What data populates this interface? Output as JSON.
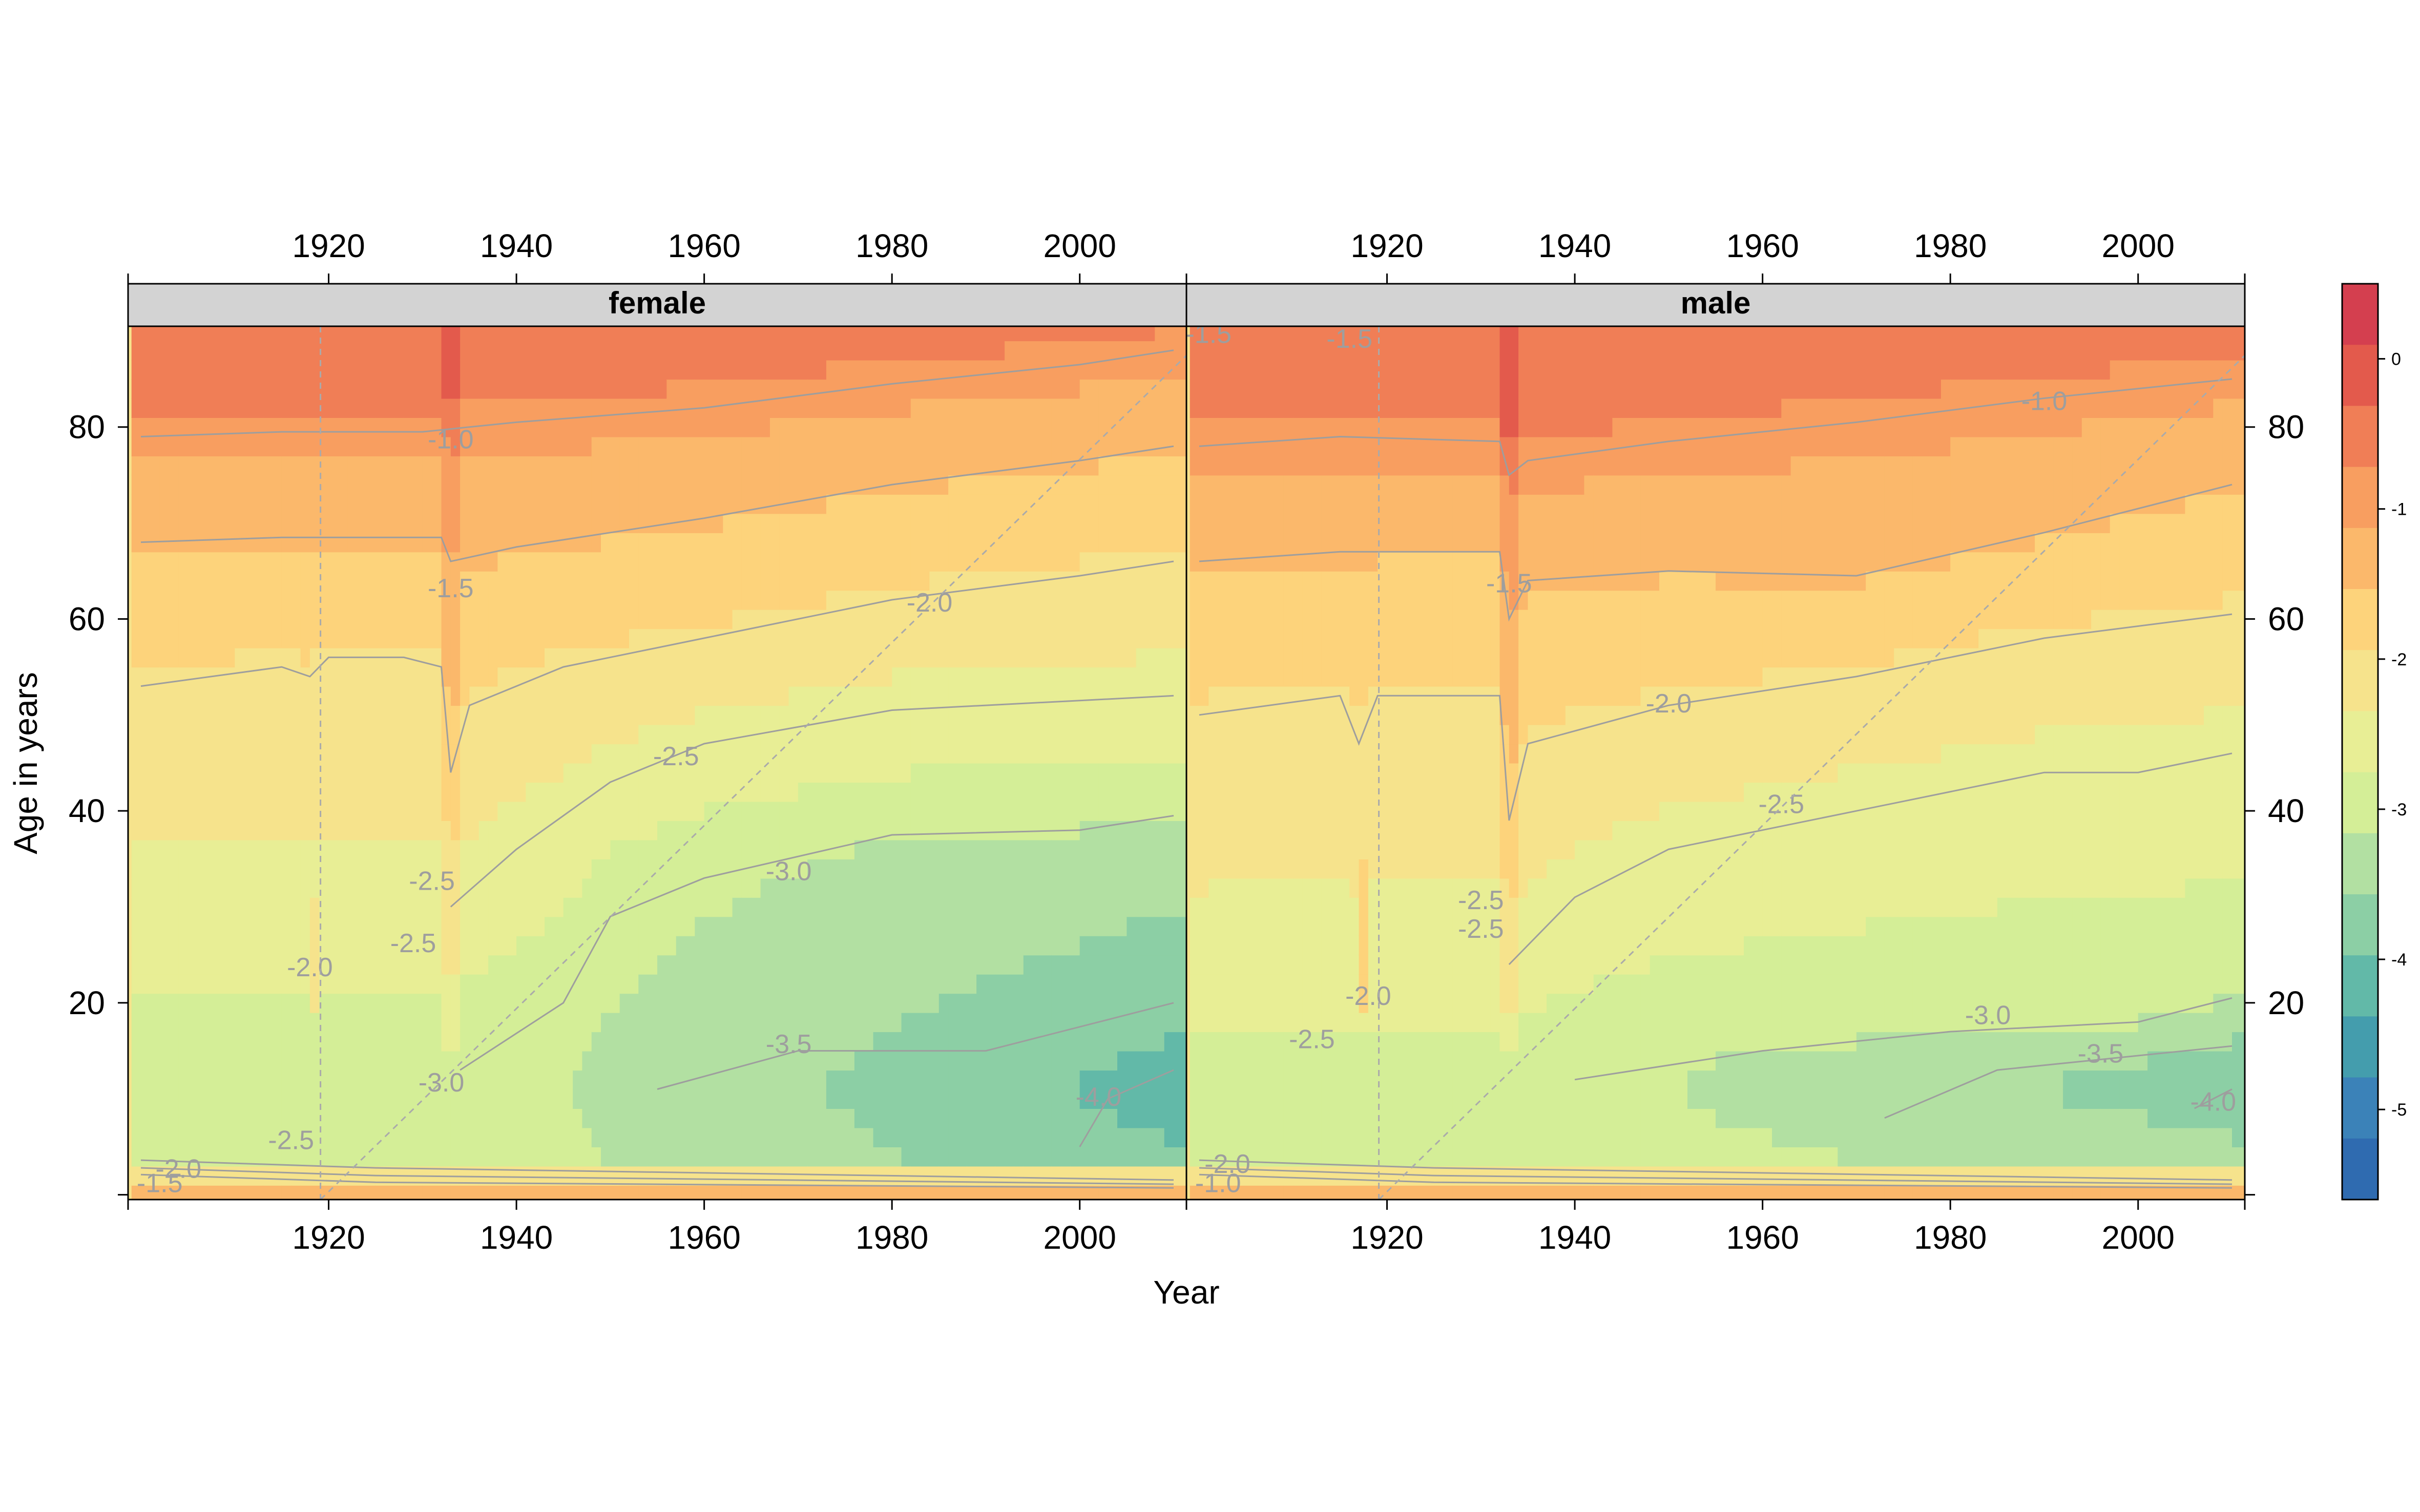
{
  "chart_data": {
    "type": "heatmap",
    "xlabel": "Year",
    "ylabel": "Age in years",
    "xlim": [
      1900,
      2010
    ],
    "ylim": [
      0,
      90
    ],
    "x_ticks": [
      1920,
      1940,
      1960,
      1980,
      2000
    ],
    "y_ticks": [
      20,
      40,
      60,
      80
    ],
    "panels": [
      "female",
      "male"
    ],
    "colorbar": {
      "range": [
        -5.6,
        0.5
      ],
      "ticks": [
        0,
        -1,
        -2,
        -3,
        -4,
        -5
      ],
      "colors": [
        "#d43f4f",
        "#e35a4c",
        "#f07e56",
        "#f89e60",
        "#fbb86b",
        "#fdd37b",
        "#f6e38c",
        "#e8ee95",
        "#d4ee97",
        "#b2e0a2",
        "#8ccfa5",
        "#62b9a8",
        "#449dad",
        "#3b82b8",
        "#2f6bb0"
      ]
    },
    "contour_color": "#9e9e9e",
    "contour_levels": [
      -1.0,
      -1.5,
      -2.0,
      -2.5,
      -3.0,
      -3.5,
      -4.0
    ],
    "female": {
      "contours": [
        {
          "level": -1.0,
          "points": [
            [
              1900,
              79
            ],
            [
              1915,
              79.5
            ],
            [
              1930,
              79.5
            ],
            [
              1940,
              80.5
            ],
            [
              1960,
              82
            ],
            [
              1980,
              84.5
            ],
            [
              2000,
              86.5
            ],
            [
              2010,
              88
            ]
          ]
        },
        {
          "level": -1.5,
          "points": [
            [
              1900,
              68
            ],
            [
              1915,
              68.5
            ],
            [
              1932,
              68.5
            ],
            [
              1933,
              66
            ],
            [
              1940,
              67.5
            ],
            [
              1960,
              70.5
            ],
            [
              1980,
              74
            ],
            [
              2000,
              76.5
            ],
            [
              2010,
              78
            ]
          ]
        },
        {
          "level": -2.0,
          "points": [
            [
              1900,
              53
            ],
            [
              1915,
              55
            ],
            [
              1918,
              54
            ],
            [
              1920,
              56
            ],
            [
              1928,
              56
            ],
            [
              1932,
              55
            ],
            [
              1933,
              44
            ],
            [
              1935,
              51
            ],
            [
              1945,
              55
            ],
            [
              1960,
              58
            ],
            [
              1980,
              62
            ],
            [
              2000,
              64.5
            ],
            [
              2010,
              66
            ]
          ]
        },
        {
          "level": -2.5,
          "points": [
            [
              1933,
              30
            ],
            [
              1940,
              36
            ],
            [
              1950,
              43
            ],
            [
              1960,
              47
            ],
            [
              1980,
              50.5
            ],
            [
              2000,
              51.5
            ],
            [
              2010,
              52
            ]
          ]
        },
        {
          "level": -3.0,
          "points": [
            [
              1934,
              13
            ],
            [
              1945,
              20
            ],
            [
              1950,
              29
            ],
            [
              1960,
              33
            ],
            [
              1980,
              37.5
            ],
            [
              2000,
              38
            ],
            [
              2010,
              39.5
            ]
          ]
        },
        {
          "level": -3.5,
          "points": [
            [
              1955,
              11
            ],
            [
              1970,
              15
            ],
            [
              1990,
              15
            ],
            [
              2010,
              20
            ]
          ]
        },
        {
          "level": -4.0,
          "points": [
            [
              2000,
              5
            ],
            [
              2003,
              10
            ],
            [
              2010,
              13
            ]
          ]
        }
      ],
      "labels": [
        {
          "text": "-1.0",
          "x": 1933,
          "y": 78.5
        },
        {
          "text": "-1.5",
          "x": 1933,
          "y": 63
        },
        {
          "text": "-2.0",
          "x": 1984,
          "y": 61.5
        },
        {
          "text": "-2.5",
          "x": 1957,
          "y": 45.5
        },
        {
          "text": "-3.0",
          "x": 1969,
          "y": 33.5
        },
        {
          "text": "-3.5",
          "x": 1969,
          "y": 15.5
        },
        {
          "text": "-4.0",
          "x": 2002,
          "y": 10
        },
        {
          "text": "-2.5",
          "x": 1931,
          "y": 32.5
        },
        {
          "text": "-2.5",
          "x": 1929,
          "y": 26
        },
        {
          "text": "-2.0",
          "x": 1918,
          "y": 23.5
        },
        {
          "text": "-3.0",
          "x": 1932,
          "y": 11.5
        },
        {
          "text": "-2.5",
          "x": 1916,
          "y": 5.5
        },
        {
          "text": "-2.0",
          "x": 1904,
          "y": 2.5
        },
        {
          "text": "-1.5",
          "x": 1902,
          "y": 1
        }
      ]
    },
    "male": {
      "contours": [
        {
          "level": -1.0,
          "points": [
            [
              1900,
              78
            ],
            [
              1915,
              79
            ],
            [
              1932,
              78.5
            ],
            [
              1933,
              75
            ],
            [
              1935,
              76.5
            ],
            [
              1950,
              78.5
            ],
            [
              1970,
              80.5
            ],
            [
              1990,
              83
            ],
            [
              2010,
              85
            ]
          ]
        },
        {
          "level": -1.5,
          "points": [
            [
              1900,
              66
            ],
            [
              1915,
              67
            ],
            [
              1932,
              67
            ],
            [
              1933,
              60
            ],
            [
              1935,
              64
            ],
            [
              1950,
              65
            ],
            [
              1970,
              64.5
            ],
            [
              1990,
              69
            ],
            [
              2010,
              74
            ]
          ]
        },
        {
          "level": -2.0,
          "points": [
            [
              1900,
              50
            ],
            [
              1915,
              52
            ],
            [
              1917,
              47
            ],
            [
              1919,
              52
            ],
            [
              1932,
              52
            ],
            [
              1933,
              39
            ],
            [
              1935,
              47
            ],
            [
              1950,
              51
            ],
            [
              1970,
              54
            ],
            [
              1990,
              58
            ],
            [
              2010,
              60.5
            ]
          ]
        },
        {
          "level": -2.5,
          "points": [
            [
              1933,
              24
            ],
            [
              1940,
              31
            ],
            [
              1950,
              36
            ],
            [
              1970,
              40
            ],
            [
              1990,
              44
            ],
            [
              2000,
              44
            ],
            [
              2010,
              46
            ]
          ]
        },
        {
          "level": -3.0,
          "points": [
            [
              1940,
              12
            ],
            [
              1960,
              15
            ],
            [
              1980,
              17
            ],
            [
              2000,
              18
            ],
            [
              2010,
              20.5
            ]
          ]
        },
        {
          "level": -3.5,
          "points": [
            [
              1973,
              8
            ],
            [
              1985,
              13
            ],
            [
              2000,
              14.5
            ],
            [
              2010,
              15.5
            ]
          ]
        },
        {
          "level": -4.0,
          "points": [
            [
              2006,
              9
            ],
            [
              2010,
              11
            ]
          ]
        }
      ],
      "labels": [
        {
          "text": "-1.0",
          "x": 1990,
          "y": 82.5
        },
        {
          "text": "-1.5",
          "x": 1933,
          "y": 63.5
        },
        {
          "text": "-2.0",
          "x": 1950,
          "y": 51
        },
        {
          "text": "-2.5",
          "x": 1962,
          "y": 40.5
        },
        {
          "text": "-3.0",
          "x": 1984,
          "y": 18.5
        },
        {
          "text": "-3.5",
          "x": 1996,
          "y": 14.5
        },
        {
          "text": "-4.0",
          "x": 2008,
          "y": 9.5
        },
        {
          "text": "-2.5",
          "x": 1930,
          "y": 30.5
        },
        {
          "text": "-2.5",
          "x": 1930,
          "y": 27.5
        },
        {
          "text": "-2.0",
          "x": 1918,
          "y": 20.5
        },
        {
          "text": "-2.5",
          "x": 1912,
          "y": 16
        },
        {
          "text": "-2.0",
          "x": 1903,
          "y": 3
        },
        {
          "text": "-1.0",
          "x": 1902,
          "y": 1
        },
        {
          "text": "-1.5",
          "x": 1916,
          "y": 89
        },
        {
          "text": "-1.5",
          "x": 1901,
          "y": 89.5
        }
      ]
    }
  }
}
